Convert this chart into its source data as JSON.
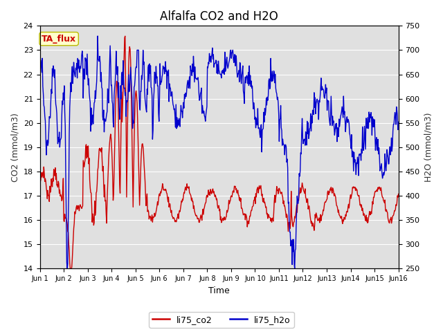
{
  "title": "Alfalfa CO2 and H2O",
  "xlabel": "Time",
  "ylabel_left": "CO2 (mmol/m3)",
  "ylabel_right": "H2O (mmol/m3)",
  "legend_label": "TA_flux",
  "series1_label": "li75_co2",
  "series2_label": "li75_h2o",
  "co2_color": "#cc0000",
  "h2o_color": "#0000cc",
  "ylim_left": [
    14.0,
    24.0
  ],
  "ylim_right": [
    250,
    750
  ],
  "yticks_left": [
    14.0,
    15.0,
    16.0,
    17.0,
    18.0,
    19.0,
    20.0,
    21.0,
    22.0,
    23.0,
    24.0
  ],
  "yticks_right": [
    250,
    300,
    350,
    400,
    450,
    500,
    550,
    600,
    650,
    700,
    750
  ],
  "bg_color": "#e0e0e0",
  "legend_box_facecolor": "#ffffcc",
  "legend_box_edgecolor": "#bbbb00",
  "legend_text_color": "#cc0000",
  "line_width": 1.0,
  "fig_width": 6.4,
  "fig_height": 4.8,
  "dpi": 100
}
